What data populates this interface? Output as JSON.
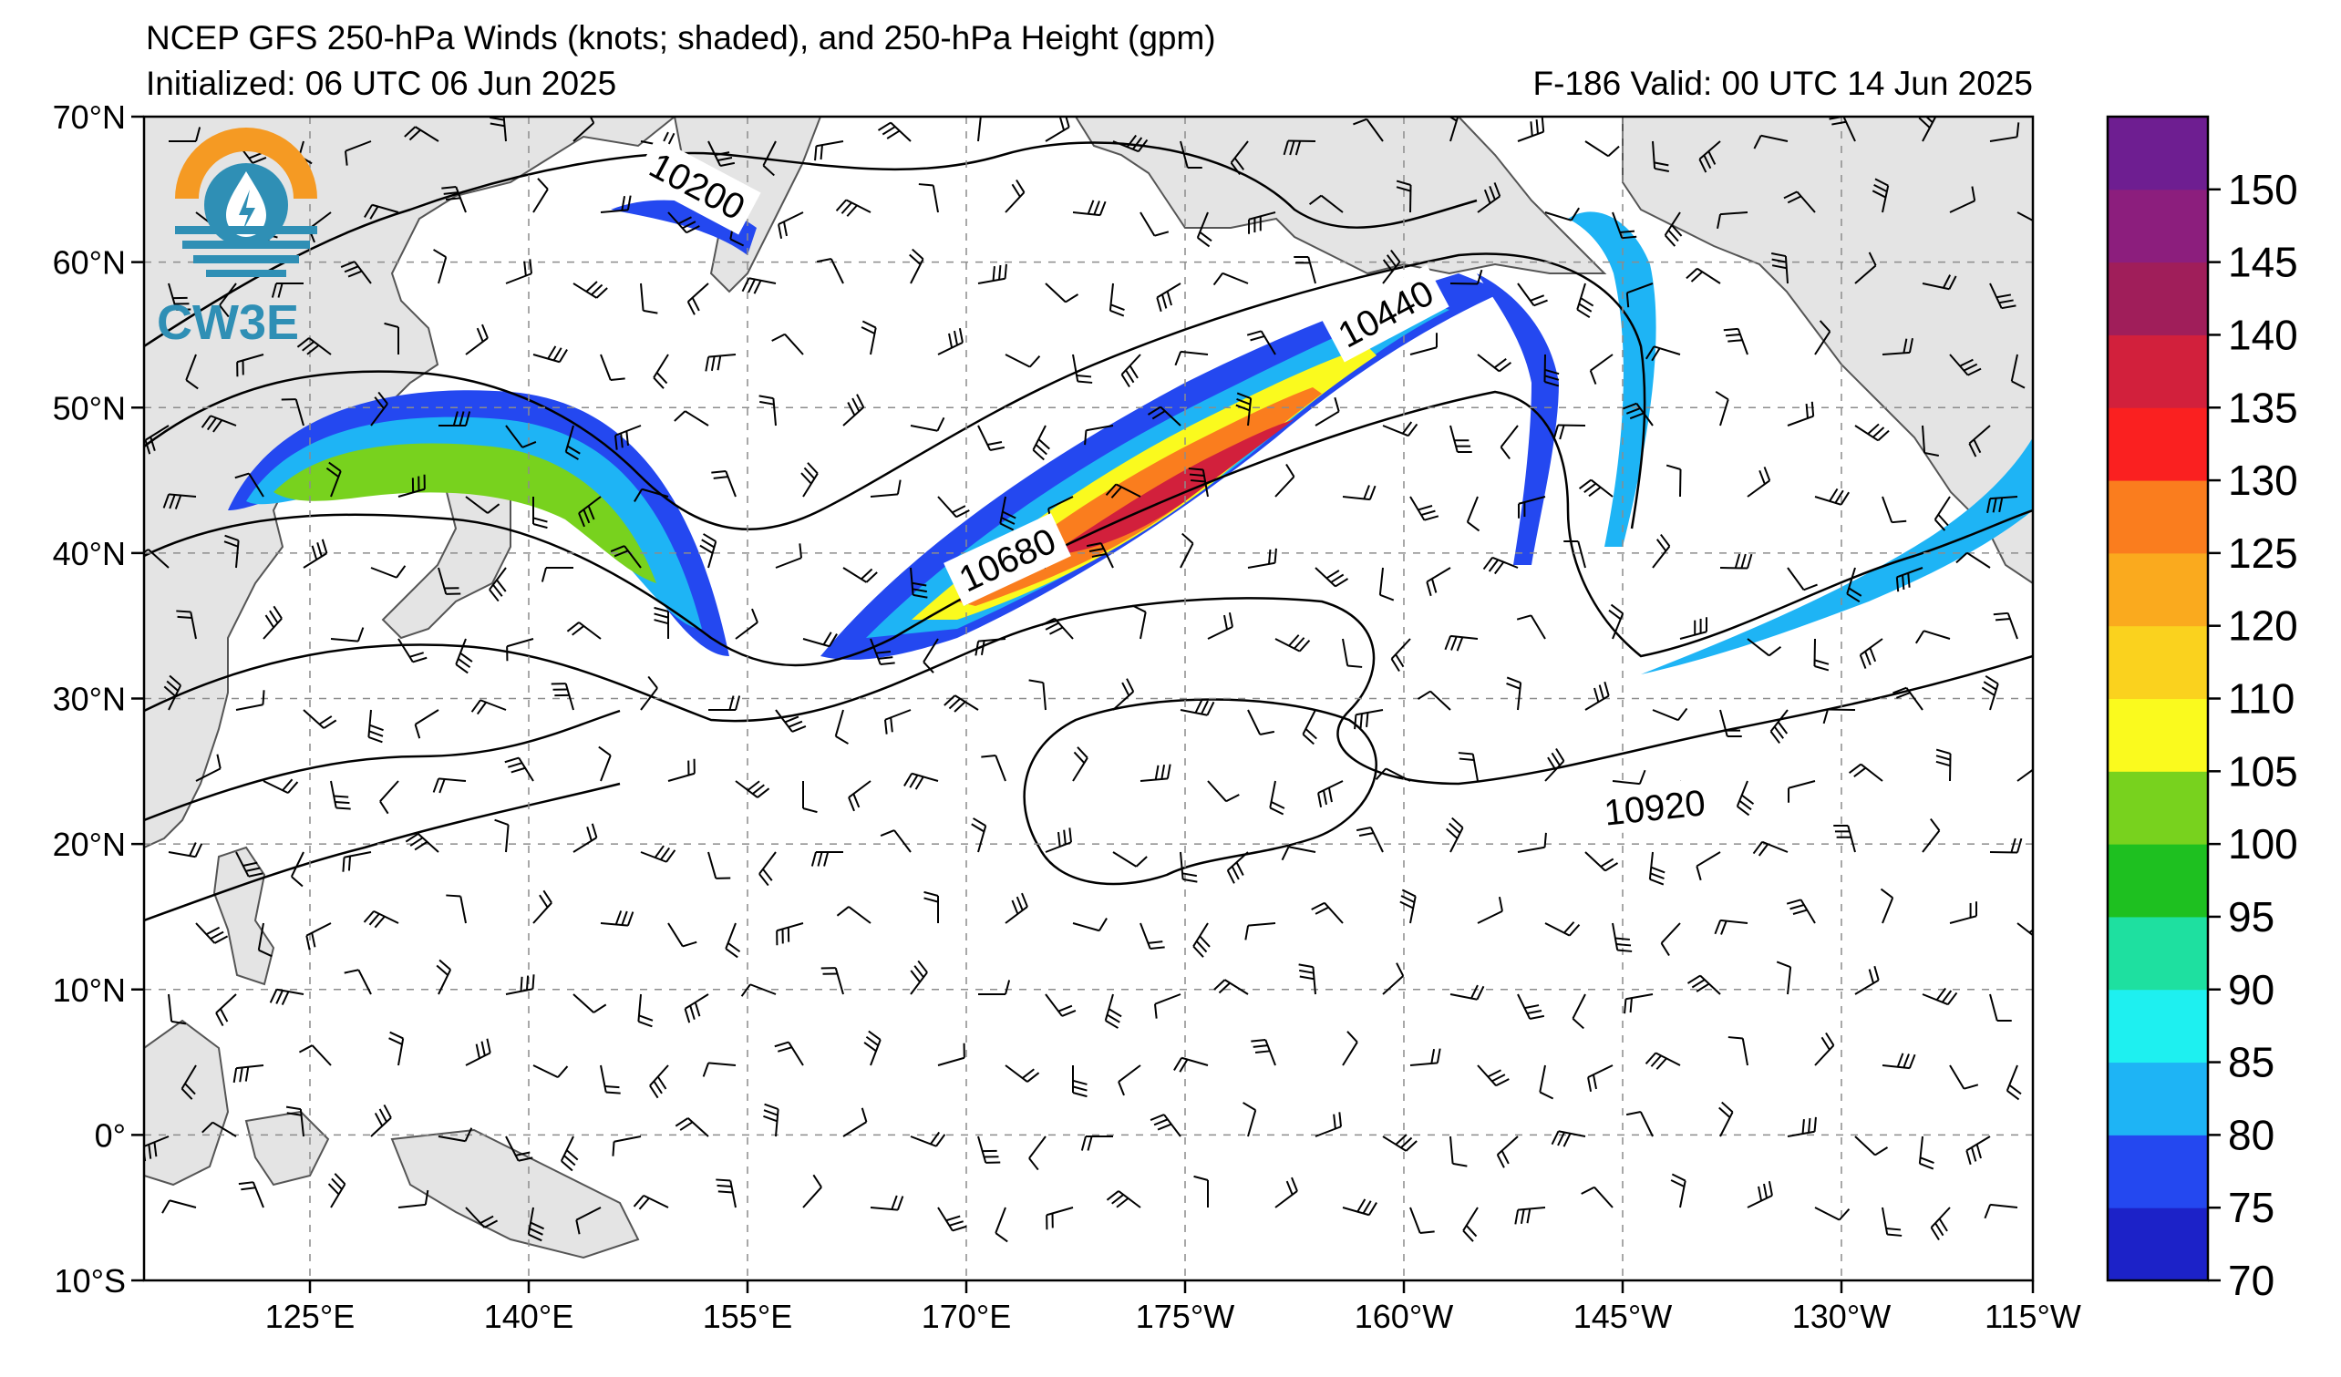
{
  "header": {
    "title_line1": "NCEP GFS 250-hPa Winds (knots; shaded), and 250-hPa Height (gpm)",
    "initialized": "Initialized: 06 UTC 06 Jun 2025",
    "valid": "F-186  Valid: 00 UTC 14 Jun 2025"
  },
  "logo": {
    "text": "CW3E",
    "icon": "cw3e-water-drop-logo-icon",
    "colors": {
      "orange": "#f59a23",
      "teal": "#2f8fb5"
    }
  },
  "map": {
    "lat_labels": [
      "70°N",
      "60°N",
      "50°N",
      "40°N",
      "30°N",
      "20°N",
      "10°N",
      "0°",
      "10°S"
    ],
    "lon_labels": [
      "125°E",
      "140°E",
      "155°E",
      "170°E",
      "175°W",
      "160°W",
      "145°W",
      "130°W",
      "115°W"
    ],
    "contour_labels": [
      "10200",
      "10440",
      "10680",
      "10920"
    ],
    "land_color": "#e6e6e6",
    "ocean_color": "#ffffff",
    "grid": "dashed"
  },
  "colorbar": {
    "ticks": [
      "70",
      "75",
      "80",
      "85",
      "90",
      "95",
      "100",
      "105",
      "110",
      "120",
      "125",
      "130",
      "135",
      "140",
      "145",
      "150"
    ],
    "colors": [
      "#1c22c8",
      "#2448f0",
      "#1eb4f5",
      "#1ef0f0",
      "#1ee0a0",
      "#1ec020",
      "#78d21e",
      "#fafa1e",
      "#fad21e",
      "#faaa1e",
      "#fa7d1e",
      "#fa2020",
      "#d2203c",
      "#a01e5a",
      "#8c1e7d",
      "#6e1e91"
    ]
  }
}
